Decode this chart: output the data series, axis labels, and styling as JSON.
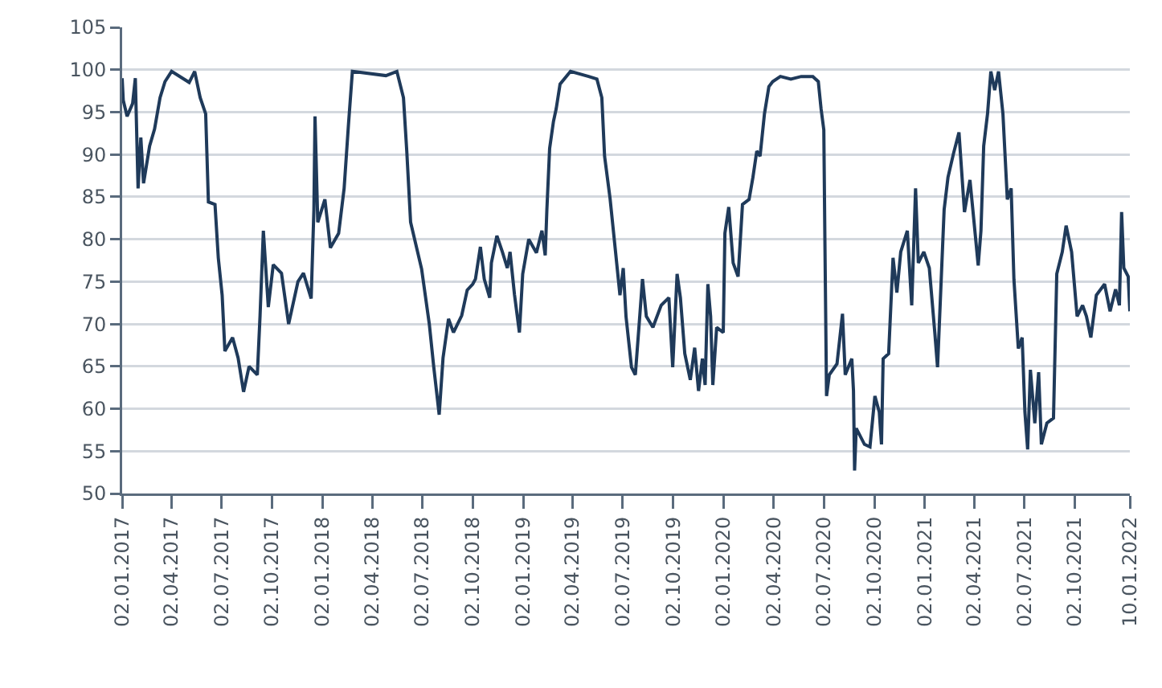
{
  "chart_data": {
    "type": "line",
    "grid": "y",
    "marker": "none",
    "line_style": "solid",
    "x": [
      "2017-01-02",
      "2017-01-04",
      "2017-01-11",
      "2017-01-21",
      "2017-01-26",
      "2017-01-31",
      "2017-02-05",
      "2017-02-10",
      "2017-02-21",
      "2017-03-02",
      "2017-03-12",
      "2017-03-21",
      "2017-04-02",
      "2017-05-04",
      "2017-05-14",
      "2017-05-24",
      "2017-06-03",
      "2017-06-08",
      "2017-06-20",
      "2017-06-26",
      "2017-07-03",
      "2017-07-08",
      "2017-07-22",
      "2017-08-01",
      "2017-08-11",
      "2017-08-21",
      "2017-09-05",
      "2017-09-10",
      "2017-09-16",
      "2017-09-25",
      "2017-10-04",
      "2017-10-19",
      "2017-11-01",
      "2017-11-18",
      "2017-11-28",
      "2017-12-12",
      "2017-12-17",
      "2017-12-19",
      "2017-12-24",
      "2018-01-06",
      "2018-01-16",
      "2018-01-31",
      "2018-02-10",
      "2018-02-18",
      "2018-02-25",
      "2018-04-27",
      "2018-05-17",
      "2018-05-29",
      "2018-06-04",
      "2018-06-11",
      "2018-07-01",
      "2018-07-15",
      "2018-07-23",
      "2018-08-02",
      "2018-08-09",
      "2018-08-19",
      "2018-08-28",
      "2018-09-12",
      "2018-09-22",
      "2018-10-02",
      "2018-10-07",
      "2018-10-16",
      "2018-10-23",
      "2018-11-02",
      "2018-11-05",
      "2018-11-15",
      "2018-11-25",
      "2018-12-04",
      "2018-12-09",
      "2018-12-17",
      "2018-12-26",
      "2019-01-01",
      "2019-01-12",
      "2019-01-26",
      "2019-02-05",
      "2019-02-11",
      "2019-02-14",
      "2019-02-19",
      "2019-02-26",
      "2019-03-03",
      "2019-03-10",
      "2019-03-29",
      "2019-05-01",
      "2019-05-16",
      "2019-05-25",
      "2019-05-30",
      "2019-06-09",
      "2019-06-19",
      "2019-06-27",
      "2019-07-03",
      "2019-07-08",
      "2019-07-18",
      "2019-07-25",
      "2019-08-02",
      "2019-08-07",
      "2019-08-14",
      "2019-08-26",
      "2019-09-10",
      "2019-09-24",
      "2019-10-01",
      "2019-10-09",
      "2019-10-15",
      "2019-10-23",
      "2019-11-02",
      "2019-11-10",
      "2019-11-17",
      "2019-11-24",
      "2019-11-29",
      "2019-12-04",
      "2019-12-09",
      "2019-12-13",
      "2019-12-20",
      "2020-01-01",
      "2020-01-04",
      "2020-01-11",
      "2020-01-19",
      "2020-01-28",
      "2020-02-05",
      "2020-02-17",
      "2020-02-24",
      "2020-03-02",
      "2020-03-08",
      "2020-03-16",
      "2020-03-24",
      "2020-03-31",
      "2020-04-14",
      "2020-05-03",
      "2020-05-22",
      "2020-06-12",
      "2020-06-22",
      "2020-06-27",
      "2020-07-02",
      "2020-07-04",
      "2020-07-07",
      "2020-07-12",
      "2020-07-26",
      "2020-08-05",
      "2020-08-10",
      "2020-08-22",
      "2020-08-25",
      "2020-08-27",
      "2020-08-30",
      "2020-09-14",
      "2020-09-24",
      "2020-10-03",
      "2020-10-11",
      "2020-10-15",
      "2020-10-18",
      "2020-10-28",
      "2020-11-05",
      "2020-11-12",
      "2020-11-19",
      "2020-12-01",
      "2020-12-09",
      "2020-12-16",
      "2020-12-21",
      "2020-12-31",
      "2021-01-10",
      "2021-01-20",
      "2021-01-25",
      "2021-02-06",
      "2021-02-13",
      "2021-02-23",
      "2021-03-05",
      "2021-03-15",
      "2021-03-25",
      "2021-04-04",
      "2021-04-09",
      "2021-04-14",
      "2021-04-19",
      "2021-04-26",
      "2021-05-02",
      "2021-05-09",
      "2021-05-16",
      "2021-05-24",
      "2021-06-01",
      "2021-06-08",
      "2021-06-13",
      "2021-06-21",
      "2021-06-28",
      "2021-07-03",
      "2021-07-08",
      "2021-07-13",
      "2021-07-21",
      "2021-07-28",
      "2021-08-02",
      "2021-08-12",
      "2021-08-24",
      "2021-08-30",
      "2021-09-09",
      "2021-09-16",
      "2021-09-26",
      "2021-10-06",
      "2021-10-16",
      "2021-10-23",
      "2021-10-31",
      "2021-11-10",
      "2021-11-25",
      "2021-12-05",
      "2021-12-15",
      "2021-12-22",
      "2021-12-26",
      "2021-12-30",
      "2022-01-07",
      "2022-01-10"
    ],
    "series": [
      {
        "color": "#1f3a5a",
        "values": [
          99,
          96.4,
          94.5,
          96,
          99,
          86,
          92,
          86.6,
          91,
          93,
          96.7,
          98.6,
          99.8,
          98.5,
          99.8,
          96.7,
          94.8,
          84.4,
          84.1,
          77.8,
          73.4,
          66.8,
          68.4,
          66,
          62,
          65,
          64,
          71,
          81,
          72,
          77,
          76,
          70,
          75,
          76,
          73,
          83.5,
          94.5,
          82,
          84.7,
          79,
          80.7,
          86,
          93.6,
          99.8,
          99.3,
          99.8,
          96.7,
          90.4,
          82,
          76.5,
          70,
          65,
          59.3,
          66,
          70.6,
          69,
          71,
          74,
          74.7,
          75.3,
          79.1,
          75.3,
          73.1,
          77.2,
          80.4,
          78.5,
          76.6,
          78.5,
          73.5,
          69,
          75.9,
          80,
          78.4,
          81,
          78.1,
          83.5,
          90.7,
          93.9,
          95.4,
          98.3,
          99.8,
          99.2,
          98.9,
          96.7,
          89.8,
          84.8,
          78.5,
          73.4,
          76.6,
          70.9,
          64.9,
          64,
          70.9,
          75.3,
          70.9,
          69.6,
          72.2,
          73.1,
          64.9,
          75.9,
          73.1,
          66.5,
          63.4,
          67.2,
          62.1,
          65.9,
          62.8,
          74.7,
          70.9,
          62.8,
          69.6,
          69,
          80.7,
          83.8,
          77.2,
          75.6,
          84.1,
          84.7,
          87.3,
          90.4,
          89.8,
          94.8,
          98,
          98.6,
          99.2,
          98.9,
          99.2,
          99.2,
          98.6,
          95.4,
          92.9,
          79.7,
          61.5,
          64,
          65.3,
          71.2,
          64,
          65.9,
          62.1,
          52.7,
          57.7,
          55.8,
          55.5,
          61.5,
          59.6,
          55.8,
          65.9,
          66.5,
          77.8,
          73.7,
          78.5,
          81,
          72.2,
          86,
          77.2,
          78.5,
          76.6,
          69,
          64.9,
          83.5,
          87.3,
          90.1,
          92.6,
          83.2,
          87,
          80.3,
          76.9,
          81,
          91,
          94.8,
          99.8,
          97.6,
          99.8,
          94.8,
          84.7,
          86,
          75.3,
          67.1,
          68.4,
          59.6,
          55.2,
          64.6,
          58.3,
          64.3,
          55.8,
          58.3,
          58.9,
          75.9,
          78.5,
          81.6,
          78.5,
          70.9,
          72.2,
          70.9,
          68.4,
          73.4,
          74.7,
          71.5,
          74.1,
          72.2,
          83.2,
          76.6,
          75.6,
          71.5
        ]
      }
    ],
    "xlim": [
      "2017-01-02",
      "2022-01-10"
    ],
    "xticks": [
      {
        "value": "2017-01-02",
        "label": "02.01.2017"
      },
      {
        "value": "2017-04-02",
        "label": "02.04.2017"
      },
      {
        "value": "2017-07-02",
        "label": "02.07.2017"
      },
      {
        "value": "2017-10-02",
        "label": "02.10.2017"
      },
      {
        "value": "2018-01-02",
        "label": "02.01.2018"
      },
      {
        "value": "2018-04-02",
        "label": "02.04.2018"
      },
      {
        "value": "2018-07-02",
        "label": "02.07.2018"
      },
      {
        "value": "2018-10-02",
        "label": "02.10.2018"
      },
      {
        "value": "2019-01-02",
        "label": "02.01.2019"
      },
      {
        "value": "2019-04-02",
        "label": "02.04.2019"
      },
      {
        "value": "2019-07-02",
        "label": "02.07.2019"
      },
      {
        "value": "2019-10-02",
        "label": "02.10.2019"
      },
      {
        "value": "2020-01-02",
        "label": "02.01.2020"
      },
      {
        "value": "2020-04-02",
        "label": "02.04.2020"
      },
      {
        "value": "2020-07-02",
        "label": "02.07.2020"
      },
      {
        "value": "2020-10-02",
        "label": "02.10.2020"
      },
      {
        "value": "2021-01-02",
        "label": "02.01.2021"
      },
      {
        "value": "2021-04-02",
        "label": "02.04.2021"
      },
      {
        "value": "2021-07-02",
        "label": "02.07.2021"
      },
      {
        "value": "2021-10-02",
        "label": "02.10.2021"
      },
      {
        "value": "2022-01-10",
        "label": "10.01.2022"
      }
    ],
    "ylim": [
      50,
      105
    ],
    "yticks": [
      50,
      55,
      60,
      65,
      70,
      75,
      80,
      85,
      90,
      95,
      100,
      105
    ]
  }
}
